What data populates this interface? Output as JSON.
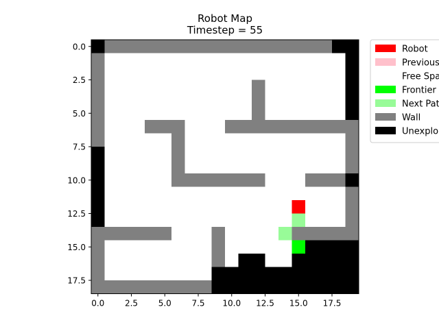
{
  "chart_data": {
    "type": "heatmap",
    "title": "Robot Map",
    "subtitle": "Timestep = 55",
    "xlabel": "",
    "ylabel": "",
    "grid_rows": 19,
    "grid_cols": 20,
    "xlim": [
      -0.5,
      19.5
    ],
    "ylim": [
      18.5,
      -0.5
    ],
    "x_ticks": [
      0.0,
      2.5,
      5.0,
      7.5,
      10.0,
      12.5,
      15.0,
      17.5
    ],
    "x_tick_labels": [
      "0.0",
      "2.5",
      "5.0",
      "7.5",
      "10.0",
      "12.5",
      "15.0",
      "17.5"
    ],
    "y_ticks": [
      0.0,
      2.5,
      5.0,
      7.5,
      10.0,
      12.5,
      15.0,
      17.5
    ],
    "y_tick_labels": [
      "0.0",
      "2.5",
      "5.0",
      "7.5",
      "10.0",
      "12.5",
      "15.0",
      "17.5"
    ],
    "cell_codes": {
      "R": "Robot",
      "P": "Previous",
      ".": "Free Space",
      "F": "Frontier",
      "N": "Next Path",
      "W": "Wall",
      "U": "Unexplored"
    },
    "grid": [
      "UWWWWWWWWWWWWWWWWWUU",
      "W..................U",
      "W..................U",
      "W...........W......U",
      "W...........W......U",
      "W...........W......U",
      "W...WWW...WWWWWWWWWW",
      "W.....W............W",
      "U.....W............W",
      "U.....W............W",
      "U.....WWWWWWW...WWWU",
      "U..................W",
      "U..............R...W",
      "U..............N...W",
      "WWWWWW...W....NWWWWW",
      "W........W.....FUUUU",
      "W........W.UU..UUUUU",
      "W........UUUUUUUUUUU",
      "WWWWWWWWWUUUUUUUUUUU"
    ],
    "legend": [
      {
        "code": "R",
        "label": "Robot",
        "color": "#ff0000"
      },
      {
        "code": "P",
        "label": "Previous",
        "color": "#ffc0cb"
      },
      {
        "code": ".",
        "label": "Free Space",
        "color": "#ffffff"
      },
      {
        "code": "F",
        "label": "Frontier",
        "color": "#00ff00"
      },
      {
        "code": "N",
        "label": "Next Path",
        "color": "#98fb98"
      },
      {
        "code": "W",
        "label": "Wall",
        "color": "#808080"
      },
      {
        "code": "U",
        "label": "Unexplored",
        "color": "#000000"
      }
    ],
    "legend_position": "outside upper right"
  }
}
